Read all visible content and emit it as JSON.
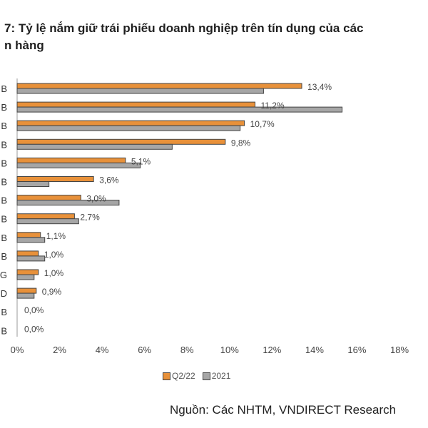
{
  "title": {
    "line1": "7: Tỷ lệ nắm giữ trái phiếu doanh nghiệp trên tín dụng của các",
    "line2": "n hàng"
  },
  "source": "Nguồn: Các NHTM, VNDIRECT Research",
  "colors": {
    "q2_22": "#E8913A",
    "y2021": "#A6A6A6",
    "outline": "#444444"
  },
  "chart_data": {
    "type": "bar",
    "orientation": "horizontal",
    "categories": [
      "B",
      "B",
      "B",
      "B",
      "B",
      "B",
      "B",
      "B",
      "B",
      "B",
      "G",
      "D",
      "B",
      "B"
    ],
    "series": [
      {
        "name": "Q2/22",
        "values": [
          13.4,
          11.2,
          10.7,
          9.8,
          5.1,
          3.6,
          3.0,
          2.7,
          1.1,
          1.0,
          1.0,
          0.9,
          0.0,
          0.0
        ]
      },
      {
        "name": "2021",
        "values": [
          11.6,
          15.3,
          10.5,
          7.3,
          5.8,
          1.5,
          4.8,
          2.9,
          1.3,
          1.3,
          0.8,
          0.8,
          0.0,
          0.0
        ]
      }
    ],
    "data_labels": [
      "13,4%",
      "11,2%",
      "10,7%",
      "9,8%",
      "5,1%",
      "3,6%",
      "3,0%",
      "2,7%",
      "1,1%",
      "1,0%",
      "1,0%",
      "0,9%",
      "0,0%",
      "0,0%"
    ],
    "x_ticks": [
      "0%",
      "2%",
      "4%",
      "6%",
      "8%",
      "10%",
      "12%",
      "14%",
      "16%",
      "18%"
    ],
    "xlim": [
      0,
      18
    ],
    "grid": false,
    "legend_position": "bottom-center"
  }
}
